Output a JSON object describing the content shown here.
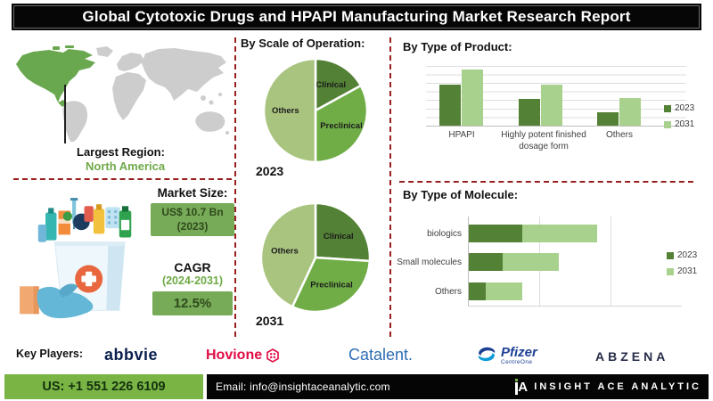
{
  "title": "Global Cytotoxic Drugs and HPAPI Manufacturing Market Research Report",
  "map_section": {
    "largest_region_label": "Largest Region:",
    "largest_region_value": "North America",
    "highlight_color": "#6aa84f",
    "land_color": "#cdcdcd"
  },
  "market": {
    "size_heading": "Market Size:",
    "size_value": "US$ 10.7 Bn",
    "size_year": "(2023)",
    "cagr_label": "CAGR",
    "cagr_period": "(2024-2031)",
    "cagr_value": "12.5%",
    "box_color": "#77ab58"
  },
  "chart_data": [
    {
      "id": "pie2023",
      "type": "pie",
      "title": "By Scale of Operation:",
      "year_label": "2023",
      "labels": [
        "Clinical",
        "Preclinical",
        "Others"
      ],
      "values": [
        17,
        33,
        50
      ],
      "colors": [
        "#538135",
        "#70ad47",
        "#a9c47f"
      ],
      "legend_position": "none"
    },
    {
      "id": "pie2031",
      "type": "pie",
      "title": "By Scale of Operation:",
      "year_label": "2031",
      "labels": [
        "Clinical",
        "Preclinical",
        "Others"
      ],
      "values": [
        26,
        31,
        43
      ],
      "colors": [
        "#538135",
        "#70ad47",
        "#a9c47f"
      ],
      "legend_position": "none"
    },
    {
      "id": "product",
      "type": "bar",
      "title": "By Type of Product:",
      "categories": [
        "HPAPI",
        "Highly potent finished dosage form",
        "Others"
      ],
      "series": [
        {
          "name": "2023",
          "color": "#538135",
          "values": [
            66,
            43,
            21
          ]
        },
        {
          "name": "2031",
          "color": "#a9d18e",
          "values": [
            90,
            66,
            44
          ]
        }
      ],
      "xlabel": "",
      "ylabel": "",
      "ylim": [
        0,
        100
      ],
      "grid": "horizontal",
      "legend_position": "right"
    },
    {
      "id": "molecule",
      "type": "bar-horizontal-stacked",
      "title": "By Type of Molecule:",
      "categories": [
        "biologics",
        "Small molecules",
        "Others"
      ],
      "series": [
        {
          "name": "2023",
          "color": "#538135",
          "values": [
            25,
            16,
            8
          ]
        },
        {
          "name": "2031",
          "color": "#a9d18e",
          "values": [
            35,
            26,
            17
          ]
        }
      ],
      "xlabel": "",
      "ylabel": "",
      "xlim": [
        0,
        100
      ],
      "grid": "vertical",
      "legend_position": "right"
    }
  ],
  "key_players": {
    "heading": "Key Players:",
    "logos": [
      {
        "name": "abbvie"
      },
      {
        "name": "Hovione"
      },
      {
        "name": "Catalent."
      },
      {
        "name": "Pfizer",
        "sub": "CentreOne"
      },
      {
        "name": "ABZENA"
      }
    ]
  },
  "footer": {
    "phone": "US: +1 551 226 6109",
    "email": "Email: info@insightaceanalytic.com",
    "brand_glyph": "A",
    "brand": "INSIGHT ACE ANALYTIC",
    "accent_green": "#79b445"
  }
}
